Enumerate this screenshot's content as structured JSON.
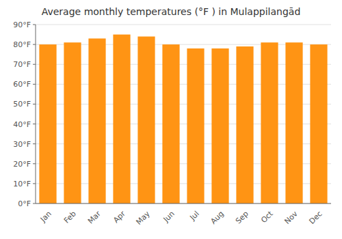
{
  "chart_data": {
    "type": "bar",
    "title": "Average monthly temperatures (°F ) in Mulappilangād",
    "categories": [
      "Jan",
      "Feb",
      "Mar",
      "Apr",
      "May",
      "Jun",
      "Jul",
      "Aug",
      "Sep",
      "Oct",
      "Nov",
      "Dec"
    ],
    "values": [
      80,
      81,
      83,
      85,
      84,
      80,
      78,
      78,
      79,
      81,
      81,
      80
    ],
    "color": "#ff9414",
    "ylim": [
      0,
      90
    ],
    "yticks": [
      {
        "value": 0,
        "label": "0°F"
      },
      {
        "value": 10,
        "label": "10°F"
      },
      {
        "value": 20,
        "label": "20°F"
      },
      {
        "value": 30,
        "label": "30°F"
      },
      {
        "value": 40,
        "label": "40°F"
      },
      {
        "value": 50,
        "label": "50°F"
      },
      {
        "value": 60,
        "label": "60°F"
      },
      {
        "value": 70,
        "label": "70°F"
      },
      {
        "value": 80,
        "label": "80°F"
      },
      {
        "value": 90,
        "label": "90°F"
      }
    ],
    "grid": true
  }
}
